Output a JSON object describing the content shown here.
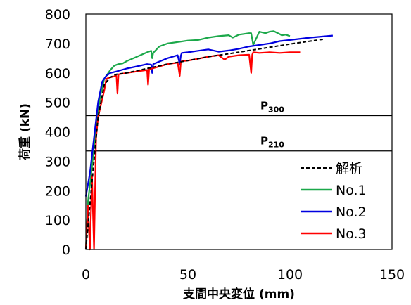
{
  "chart_data": {
    "type": "line",
    "xlabel": "支間中央変位 (mm)",
    "ylabel": "荷重 (kN)",
    "xlim": [
      0,
      150
    ],
    "ylim": [
      0,
      800
    ],
    "xticks": [
      0,
      50,
      100,
      150
    ],
    "yticks": [
      0,
      100,
      200,
      300,
      400,
      500,
      600,
      700,
      800
    ],
    "grid": false,
    "legend_position": "bottom-right",
    "reference_lines": [
      {
        "main": "P",
        "sub": "300",
        "y": 455
      },
      {
        "main": "P",
        "sub": "210",
        "y": 335
      }
    ],
    "series": [
      {
        "name": "解析",
        "color": "#000000",
        "dashed": true,
        "x": [
          0,
          3,
          6,
          9,
          12,
          15,
          20,
          30,
          40,
          50,
          60,
          70,
          80,
          90,
          100,
          110,
          117
        ],
        "y": [
          0,
          230,
          450,
          560,
          585,
          595,
          600,
          615,
          630,
          642,
          655,
          665,
          676,
          687,
          698,
          708,
          715
        ]
      },
      {
        "name": "No.1",
        "color": "#1ba84a",
        "dashed": false,
        "x": [
          0,
          1,
          2,
          1,
          2.5,
          5,
          7,
          9,
          11,
          12,
          14,
          16,
          18,
          20,
          25,
          30,
          32,
          32.5,
          33,
          36,
          40,
          45,
          50,
          55,
          60,
          65,
          70,
          72,
          75,
          80,
          81,
          82,
          85,
          88,
          90,
          92,
          95,
          96,
          98,
          100
        ],
        "y": [
          0,
          150,
          0,
          160,
          250,
          420,
          520,
          580,
          600,
          610,
          625,
          630,
          632,
          640,
          655,
          670,
          675,
          650,
          668,
          690,
          700,
          705,
          710,
          712,
          720,
          725,
          728,
          720,
          730,
          735,
          735,
          695,
          740,
          735,
          740,
          742,
          732,
          728,
          730,
          725
        ]
      },
      {
        "name": "No.2",
        "color": "#0000e0",
        "dashed": false,
        "x": [
          0,
          2,
          4,
          6,
          8,
          10,
          12,
          15,
          20,
          25,
          30,
          32,
          32.5,
          33,
          40,
          45,
          46,
          46.5,
          47,
          50,
          55,
          60,
          65,
          70,
          75,
          80,
          85,
          90,
          95,
          100,
          110,
          121
        ],
        "y": [
          180,
          260,
          380,
          500,
          570,
          590,
          600,
          605,
          615,
          622,
          630,
          628,
          600,
          630,
          650,
          660,
          630,
          658,
          668,
          670,
          675,
          680,
          672,
          676,
          682,
          690,
          695,
          700,
          708,
          712,
          720,
          727
        ]
      },
      {
        "name": "No.3",
        "color": "#ff0000",
        "dashed": false,
        "x": [
          0,
          1,
          2,
          3,
          4,
          5,
          6,
          7,
          8,
          9,
          10,
          12,
          15,
          15.5,
          16,
          20,
          25,
          30,
          30.5,
          31,
          35,
          40,
          45,
          46,
          46.5,
          47,
          50,
          55,
          60,
          65,
          68,
          70,
          75,
          80,
          81,
          81.5,
          82,
          85,
          90,
          95,
          100,
          105
        ],
        "y": [
          0,
          150,
          0,
          250,
          0,
          380,
          450,
          480,
          510,
          540,
          580,
          585,
          590,
          530,
          595,
          600,
          605,
          610,
          560,
          612,
          620,
          630,
          635,
          590,
          635,
          640,
          642,
          648,
          655,
          660,
          645,
          655,
          660,
          662,
          600,
          662,
          670,
          668,
          670,
          668,
          670,
          670
        ]
      }
    ]
  }
}
